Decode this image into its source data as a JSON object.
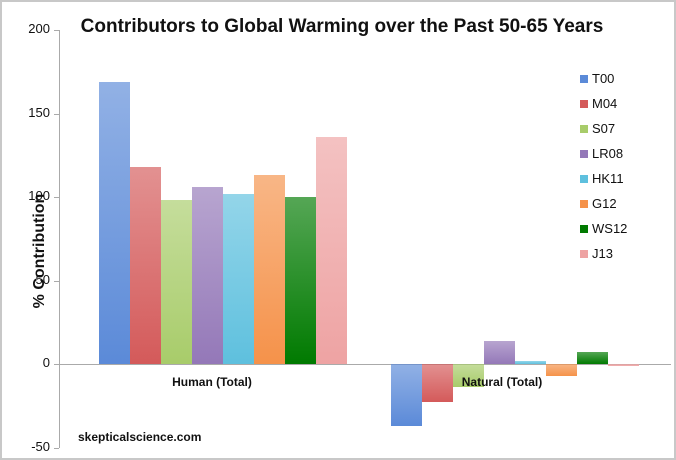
{
  "chart_data": {
    "type": "bar",
    "title": "Contributors to Global Warming over the Past 50-65 Years",
    "xlabel": "",
    "ylabel": "% Contribution",
    "ylim": [
      -50,
      200
    ],
    "yticks": [
      "200",
      "150",
      "100",
      "50",
      "0",
      "-50"
    ],
    "categories": [
      "Human (Total)",
      "Natural (Total)"
    ],
    "legend_position": "right",
    "grid": false,
    "series": [
      {
        "name": "T00",
        "color": "#5b8ad8",
        "values": [
          169,
          -37
        ]
      },
      {
        "name": "M04",
        "color": "#d45a5a",
        "values": [
          118,
          -23
        ]
      },
      {
        "name": "S07",
        "color": "#a8cc6a",
        "values": [
          98,
          -14
        ]
      },
      {
        "name": "LR08",
        "color": "#9478b8",
        "values": [
          106,
          14
        ]
      },
      {
        "name": "HK11",
        "color": "#5ec0de",
        "values": [
          102,
          2
        ]
      },
      {
        "name": "G12",
        "color": "#f5924a",
        "values": [
          113,
          -7
        ]
      },
      {
        "name": "WS12",
        "color": "#007a00",
        "values": [
          100,
          7
        ]
      },
      {
        "name": "J13",
        "color": "#eea3a3",
        "values": [
          136,
          -1
        ]
      }
    ],
    "annotations": [
      "skepticalscience.com"
    ]
  },
  "title": "Contributors to Global Warming over the Past 50-65 Years",
  "ylabel": "% Contribution",
  "watermark": "skepticalscience.com",
  "categories": [
    "Human (Total)",
    "Natural (Total)"
  ],
  "ticks": [
    "200",
    "150",
    "100",
    "50",
    "0",
    "-50"
  ],
  "legend": [
    "T00",
    "M04",
    "S07",
    "LR08",
    "HK11",
    "G12",
    "WS12",
    "J13"
  ]
}
